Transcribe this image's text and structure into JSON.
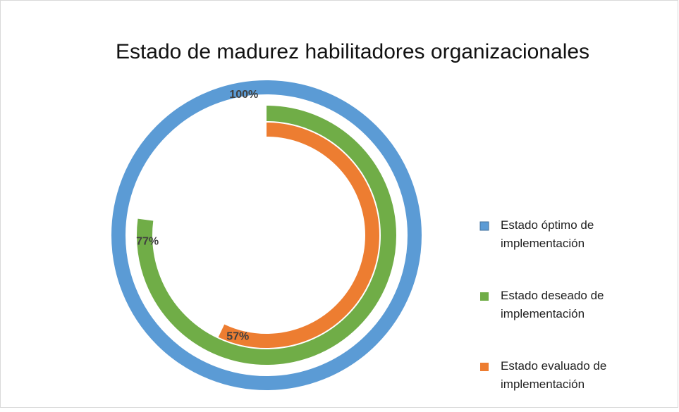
{
  "chart_data": {
    "type": "radial-bar",
    "title": "Estado de madurez habilitadores organizacionales",
    "series": [
      {
        "name": "Estado óptimo de implementación",
        "color": "#5b9bd5",
        "values": [
          100
        ],
        "value_labels": [
          "100%"
        ]
      },
      {
        "name": "Estado deseado de implementación",
        "color": "#70ad47",
        "values": [
          77
        ],
        "value_labels": [
          "77%"
        ]
      },
      {
        "name": "Estado evaluado de implementación",
        "color": "#ed7d31",
        "values": [
          57
        ],
        "value_labels": [
          "57%"
        ]
      }
    ],
    "ylim": [
      0,
      100
    ],
    "legend": "right"
  }
}
